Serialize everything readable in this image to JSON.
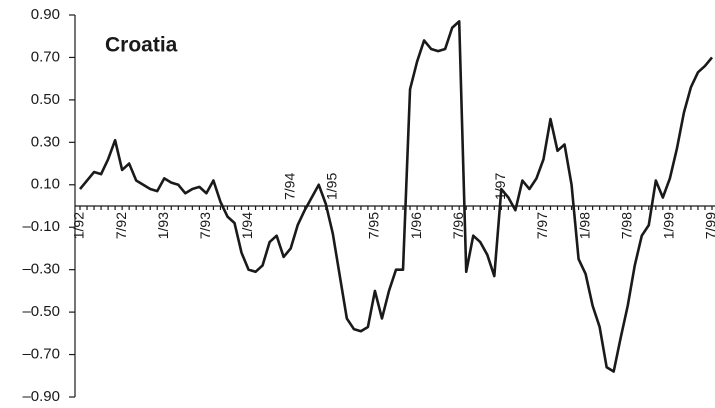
{
  "chart_data": {
    "type": "line",
    "title": "Croatia",
    "color": "#1a1a1a",
    "categories": [
      "1/92",
      null,
      null,
      null,
      null,
      null,
      "7/92",
      null,
      null,
      null,
      null,
      null,
      "1/93",
      null,
      null,
      null,
      null,
      null,
      "7/93",
      null,
      null,
      null,
      null,
      null,
      "1/94",
      null,
      null,
      null,
      null,
      null,
      "7/94",
      null,
      null,
      null,
      null,
      null,
      "1/95",
      null,
      null,
      null,
      null,
      null,
      "7/95",
      null,
      null,
      null,
      null,
      null,
      "1/96",
      null,
      null,
      null,
      null,
      null,
      "7/96",
      null,
      null,
      null,
      null,
      null,
      "1/97",
      null,
      null,
      null,
      null,
      null,
      "7/97",
      null,
      null,
      null,
      null,
      null,
      "1/98",
      null,
      null,
      null,
      null,
      null,
      "7/98",
      null,
      null,
      null,
      null,
      null,
      "1/99",
      null,
      null,
      null,
      null,
      null,
      "7/99"
    ],
    "values": [
      0.08,
      0.12,
      0.16,
      0.15,
      0.22,
      0.31,
      0.17,
      0.2,
      0.12,
      0.1,
      0.08,
      0.07,
      0.13,
      0.11,
      0.1,
      0.06,
      0.08,
      0.09,
      0.06,
      0.12,
      0.02,
      -0.05,
      -0.08,
      -0.22,
      -0.3,
      -0.31,
      -0.28,
      -0.17,
      -0.14,
      -0.24,
      -0.2,
      -0.09,
      -0.02,
      0.04,
      0.1,
      0.01,
      -0.13,
      -0.33,
      -0.53,
      -0.58,
      -0.59,
      -0.57,
      -0.4,
      -0.53,
      -0.4,
      -0.3,
      -0.3,
      0.55,
      0.68,
      0.78,
      0.74,
      0.73,
      0.74,
      0.84,
      0.87,
      -0.31,
      -0.14,
      -0.17,
      -0.23,
      -0.33,
      0.08,
      0.04,
      -0.02,
      0.12,
      0.08,
      0.13,
      0.22,
      0.41,
      0.26,
      0.29,
      0.1,
      -0.25,
      -0.32,
      -0.47,
      -0.57,
      -0.76,
      -0.78,
      -0.62,
      -0.47,
      -0.28,
      -0.14,
      -0.09,
      0.12,
      0.04,
      0.13,
      0.27,
      0.44,
      0.56,
      0.63,
      0.66,
      0.7
    ],
    "ylim": [
      -0.9,
      0.9
    ],
    "yticks": [
      {
        "value": 0.9,
        "label": "0.90"
      },
      {
        "value": 0.7,
        "label": "0.70"
      },
      {
        "value": 0.5,
        "label": "0.50"
      },
      {
        "value": 0.3,
        "label": "0.30"
      },
      {
        "value": 0.1,
        "label": "0.10"
      },
      {
        "value": -0.1,
        "label": "–0.10"
      },
      {
        "value": -0.3,
        "label": "–0.30"
      },
      {
        "value": -0.5,
        "label": "–0.50"
      },
      {
        "value": -0.7,
        "label": "–0.70"
      },
      {
        "value": -0.9,
        "label": "–0.90"
      }
    ]
  }
}
